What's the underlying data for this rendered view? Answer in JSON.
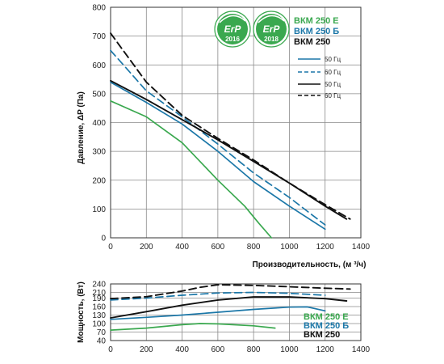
{
  "colors": {
    "green": "#3aa84f",
    "blue": "#1b77a8",
    "black": "#111111",
    "grid": "#8a8a8a",
    "badge_green": "#3aa84f"
  },
  "badges": [
    {
      "top": "ErP",
      "year": "2016"
    },
    {
      "top": "ErP",
      "year": "2018"
    }
  ],
  "chart_data": [
    {
      "type": "line",
      "xlabel": "Производительность, (м ³/ч)",
      "ylabel": "Давление, ΔP (Па)",
      "xlim": [
        0,
        1400
      ],
      "ylim": [
        0,
        800
      ],
      "xticks": [
        "0",
        "200",
        "400",
        "600",
        "800",
        "1000",
        "1200",
        "1400"
      ],
      "yticks": [
        "0",
        "100",
        "200",
        "300",
        "400",
        "500",
        "600",
        "700",
        "800"
      ],
      "grid": true,
      "legend_models": [
        {
          "label": "ВКМ 250 Е",
          "color_key": "green"
        },
        {
          "label": "ВКМ 250 Б",
          "color_key": "blue"
        },
        {
          "label": "ВКМ 250",
          "color_key": "black"
        }
      ],
      "legend_entries": [
        {
          "label": "50 Гц",
          "color_key": "blue",
          "dashed": false
        },
        {
          "label": "60 Гц",
          "color_key": "blue",
          "dashed": true
        },
        {
          "label": "50 Гц",
          "color_key": "black",
          "dashed": false
        },
        {
          "label": "60 Гц",
          "color_key": "black",
          "dashed": true
        }
      ],
      "series": [
        {
          "color_key": "green",
          "dashed": false,
          "x": [
            0,
            200,
            400,
            600,
            750,
            830,
            900
          ],
          "y": [
            475,
            420,
            330,
            200,
            110,
            50,
            0
          ]
        },
        {
          "color_key": "blue",
          "dashed": false,
          "x": [
            0,
            200,
            400,
            600,
            800,
            1000,
            1200
          ],
          "y": [
            540,
            470,
            395,
            300,
            195,
            110,
            30
          ]
        },
        {
          "color_key": "blue",
          "dashed": true,
          "x": [
            0,
            200,
            400,
            600,
            800,
            1000,
            1200
          ],
          "y": [
            650,
            510,
            420,
            325,
            225,
            140,
            45
          ]
        },
        {
          "color_key": "black",
          "dashed": false,
          "x": [
            0,
            200,
            400,
            600,
            800,
            1000,
            1200,
            1320
          ],
          "y": [
            545,
            480,
            410,
            340,
            265,
            190,
            110,
            65
          ]
        },
        {
          "color_key": "black",
          "dashed": true,
          "x": [
            0,
            200,
            400,
            600,
            800,
            1000,
            1200,
            1340
          ],
          "y": [
            710,
            540,
            425,
            345,
            270,
            190,
            115,
            65
          ]
        }
      ]
    },
    {
      "type": "line",
      "ylabel": "Мощность, (Вт)",
      "xlim": [
        0,
        1400
      ],
      "ylim": [
        40,
        240
      ],
      "xticks": [
        "0",
        "200",
        "400",
        "600",
        "800",
        "1000",
        "1200",
        "1400"
      ],
      "yticks": [
        "40",
        "70",
        "100",
        "130",
        "160",
        "190",
        "210",
        "240"
      ],
      "ytick_values": [
        40,
        70,
        100,
        130,
        160,
        190,
        210,
        240
      ],
      "grid": true,
      "legend_models": [
        {
          "label": "ВКМ 250 Е",
          "color_key": "green"
        },
        {
          "label": "ВКМ 250 Б",
          "color_key": "blue"
        },
        {
          "label": "ВКМ 250",
          "color_key": "black"
        }
      ],
      "series": [
        {
          "color_key": "green",
          "dashed": false,
          "x": [
            0,
            200,
            400,
            500,
            600,
            800,
            920
          ],
          "y": [
            77,
            84,
            96,
            100,
            99,
            92,
            84
          ]
        },
        {
          "color_key": "blue",
          "dashed": false,
          "x": [
            0,
            200,
            400,
            600,
            800,
            1000,
            1100,
            1200
          ],
          "y": [
            115,
            122,
            130,
            140,
            150,
            158,
            159,
            145
          ]
        },
        {
          "color_key": "blue",
          "dashed": true,
          "x": [
            0,
            200,
            400,
            600,
            800,
            1000,
            1200
          ],
          "y": [
            183,
            190,
            200,
            208,
            210,
            207,
            200
          ]
        },
        {
          "color_key": "black",
          "dashed": false,
          "x": [
            0,
            200,
            400,
            600,
            800,
            1000,
            1200,
            1320
          ],
          "y": [
            120,
            142,
            165,
            183,
            194,
            194,
            188,
            180
          ]
        },
        {
          "color_key": "black",
          "dashed": true,
          "x": [
            0,
            200,
            400,
            500,
            600,
            800,
            1000,
            1200,
            1340
          ],
          "y": [
            188,
            195,
            215,
            228,
            237,
            235,
            230,
            225,
            222
          ]
        }
      ]
    }
  ]
}
